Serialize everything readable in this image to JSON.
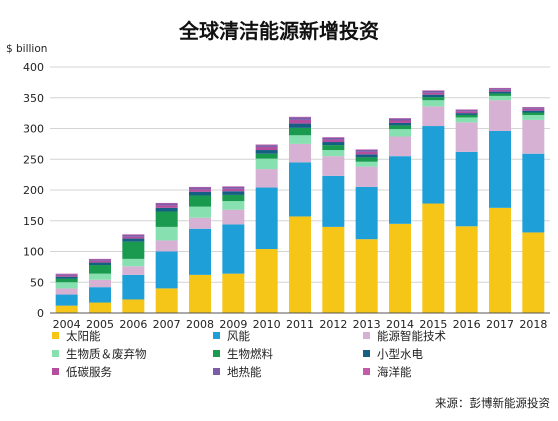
{
  "chart_data": {
    "type": "bar",
    "stacked": true,
    "title": "全球清洁能源新增投资",
    "unit_label": "$ billion",
    "ylim": [
      0,
      400
    ],
    "yticks": [
      0,
      50,
      100,
      150,
      200,
      250,
      300,
      350,
      400
    ],
    "grid": true,
    "legend_position": "bottom",
    "source": "来源：彭博新能源投资",
    "categories": [
      "2004",
      "2005",
      "2006",
      "2007",
      "2008",
      "2009",
      "2010",
      "2011",
      "2012",
      "2013",
      "2014",
      "2015",
      "2016",
      "2017",
      "2018"
    ],
    "series": [
      {
        "name": "太阳能",
        "color": "#F5C518",
        "values": [
          12,
          17,
          22,
          40,
          62,
          64,
          104,
          157,
          140,
          120,
          145,
          178,
          141,
          171,
          131
        ]
      },
      {
        "name": "风能",
        "color": "#1E9FD8",
        "values": [
          18,
          25,
          40,
          60,
          75,
          80,
          100,
          88,
          83,
          85,
          110,
          126,
          121,
          125,
          128
        ]
      },
      {
        "name": "能源智能技术",
        "color": "#D6B1D3",
        "values": [
          10,
          12,
          14,
          18,
          18,
          24,
          30,
          30,
          32,
          33,
          32,
          32,
          48,
          50,
          55
        ]
      },
      {
        "name": "生物质＆废弃物",
        "color": "#86E0B0",
        "values": [
          10,
          10,
          12,
          22,
          18,
          14,
          17,
          14,
          10,
          8,
          12,
          10,
          8,
          7,
          8
        ]
      },
      {
        "name": "生物燃料",
        "color": "#1A9A4E",
        "values": [
          6,
          14,
          28,
          25,
          18,
          10,
          8,
          12,
          8,
          7,
          6,
          5,
          4,
          4,
          4
        ]
      },
      {
        "name": "小型水电",
        "color": "#156082",
        "values": [
          3,
          4,
          5,
          6,
          6,
          6,
          6,
          7,
          5,
          5,
          4,
          4,
          3,
          3,
          3
        ]
      },
      {
        "name": "低碳服务",
        "color": "#B44FA0",
        "values": [
          2,
          3,
          3,
          4,
          4,
          4,
          5,
          6,
          4,
          4,
          4,
          3,
          3,
          3,
          3
        ]
      },
      {
        "name": "地热能",
        "color": "#7A5CA8",
        "values": [
          2,
          2,
          3,
          3,
          3,
          3,
          3,
          4,
          3,
          3,
          3,
          3,
          2,
          2,
          2
        ]
      },
      {
        "name": "海洋能",
        "color": "#C45BA8",
        "values": [
          1,
          1,
          1,
          1,
          1,
          1,
          1,
          1,
          1,
          1,
          1,
          1,
          1,
          1,
          1
        ]
      }
    ]
  }
}
